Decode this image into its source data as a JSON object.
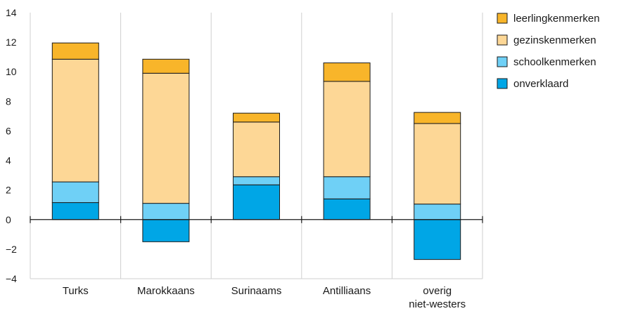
{
  "chart_data": {
    "type": "bar",
    "stacked": true,
    "categories": [
      [
        "Turks"
      ],
      [
        "Marokkaans"
      ],
      [
        "Surinaams"
      ],
      [
        "Antilliaans"
      ],
      [
        "overig",
        "niet-westers"
      ]
    ],
    "series": [
      {
        "name": "onverklaard",
        "color": "#00a6e6",
        "values": [
          1.15,
          -1.5,
          2.35,
          1.4,
          -2.7
        ]
      },
      {
        "name": "schoolkenmerken",
        "color": "#6fd0f6",
        "values": [
          1.4,
          1.1,
          0.55,
          1.5,
          1.05
        ]
      },
      {
        "name": "gezinskenmerken",
        "color": "#fdd796",
        "values": [
          8.3,
          8.8,
          3.7,
          6.45,
          5.45
        ]
      },
      {
        "name": "leerlingkenmerken",
        "color": "#f8b52a",
        "values": [
          1.1,
          0.95,
          0.6,
          1.25,
          0.75
        ]
      }
    ],
    "legend_order": [
      "leerlingkenmerken",
      "gezinskenmerken",
      "schoolkenmerken",
      "onverklaard"
    ],
    "ylim": [
      -4,
      14
    ],
    "yticks": [
      -4,
      -2,
      0,
      2,
      4,
      6,
      8,
      10,
      12,
      14
    ],
    "ytick_labels": [
      "−4",
      "−2",
      "0",
      "2",
      "4",
      "6",
      "8",
      "10",
      "12",
      "14"
    ],
    "title": "",
    "xlabel": "",
    "ylabel": "",
    "grid": true,
    "legend_position": "top-right",
    "colors": {
      "grid": "#cfcfcf",
      "axis": "#1a1a1a",
      "bar_edge": "#1a1a1a"
    }
  }
}
